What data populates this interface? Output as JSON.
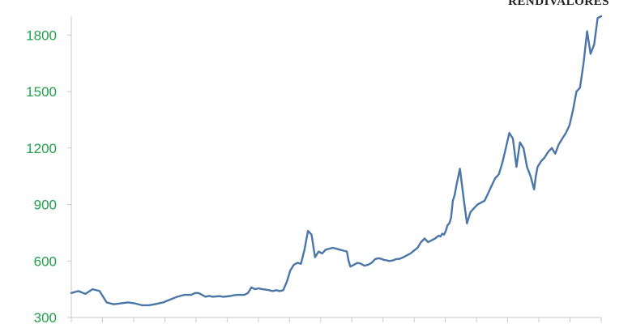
{
  "brand": "RENDIVALORES",
  "colors": {
    "line": "#4a76a8",
    "tick_label": "#22a04b",
    "axis": "#c8c8c8"
  },
  "chart_data": {
    "type": "line",
    "title": "",
    "xlabel": "",
    "ylabel": "",
    "ylim": [
      300,
      1900
    ],
    "yticks": [
      "300",
      "600",
      "900",
      "1200",
      "1500",
      "1800"
    ],
    "grid": false,
    "x": [
      0,
      4,
      8,
      12,
      16,
      20,
      24,
      28,
      32,
      36,
      40,
      44,
      48,
      52,
      56,
      60,
      64,
      68,
      70,
      72,
      74,
      76,
      78,
      80,
      82,
      84,
      86,
      88,
      90,
      92,
      94,
      96,
      98,
      100,
      101,
      102,
      103,
      104,
      106,
      108,
      110,
      112,
      114,
      116,
      118,
      120,
      122,
      124,
      126,
      128,
      130,
      132,
      134,
      136,
      138,
      140,
      142,
      144,
      146,
      148,
      150,
      152,
      154,
      156,
      157,
      158,
      160,
      162,
      164,
      165,
      166,
      167,
      168,
      170,
      172,
      174,
      176,
      177,
      178,
      180,
      182,
      184,
      186,
      188,
      190,
      192,
      194,
      196,
      198,
      200,
      202,
      204,
      206,
      208,
      209,
      210,
      211,
      212,
      213,
      214,
      215,
      216,
      217,
      218,
      220,
      222,
      224,
      226,
      228,
      230,
      232,
      234,
      236,
      238,
      240,
      242,
      244,
      246,
      248,
      250,
      252,
      254,
      256,
      258,
      260,
      262,
      263,
      264,
      266,
      268,
      270,
      272,
      274,
      276,
      278,
      280,
      282,
      284,
      286,
      288,
      290,
      292,
      294,
      296,
      298,
      300
    ],
    "values": [
      430,
      440,
      425,
      450,
      440,
      380,
      370,
      375,
      380,
      375,
      365,
      365,
      372,
      380,
      395,
      410,
      420,
      420,
      430,
      430,
      420,
      410,
      415,
      410,
      412,
      413,
      410,
      412,
      414,
      418,
      420,
      420,
      420,
      430,
      445,
      460,
      455,
      450,
      455,
      450,
      448,
      445,
      440,
      445,
      440,
      445,
      490,
      550,
      580,
      590,
      585,
      660,
      760,
      740,
      620,
      650,
      640,
      660,
      665,
      670,
      665,
      660,
      655,
      650,
      600,
      570,
      580,
      590,
      585,
      580,
      575,
      578,
      580,
      590,
      610,
      615,
      610,
      605,
      605,
      600,
      603,
      610,
      612,
      620,
      630,
      640,
      655,
      670,
      700,
      720,
      700,
      710,
      720,
      735,
      730,
      745,
      740,
      760,
      790,
      800,
      830,
      920,
      950,
      1000,
      1090,
      940,
      800,
      860,
      880,
      900,
      910,
      920,
      960,
      1000,
      1040,
      1060,
      1120,
      1200,
      1280,
      1250,
      1100,
      1230,
      1200,
      1100,
      1050,
      980,
      1050,
      1100,
      1130,
      1150,
      1180,
      1200,
      1170,
      1220,
      1250,
      1280,
      1320,
      1400,
      1500,
      1520,
      1650,
      1820,
      1700,
      1750,
      1890,
      1900
    ]
  }
}
